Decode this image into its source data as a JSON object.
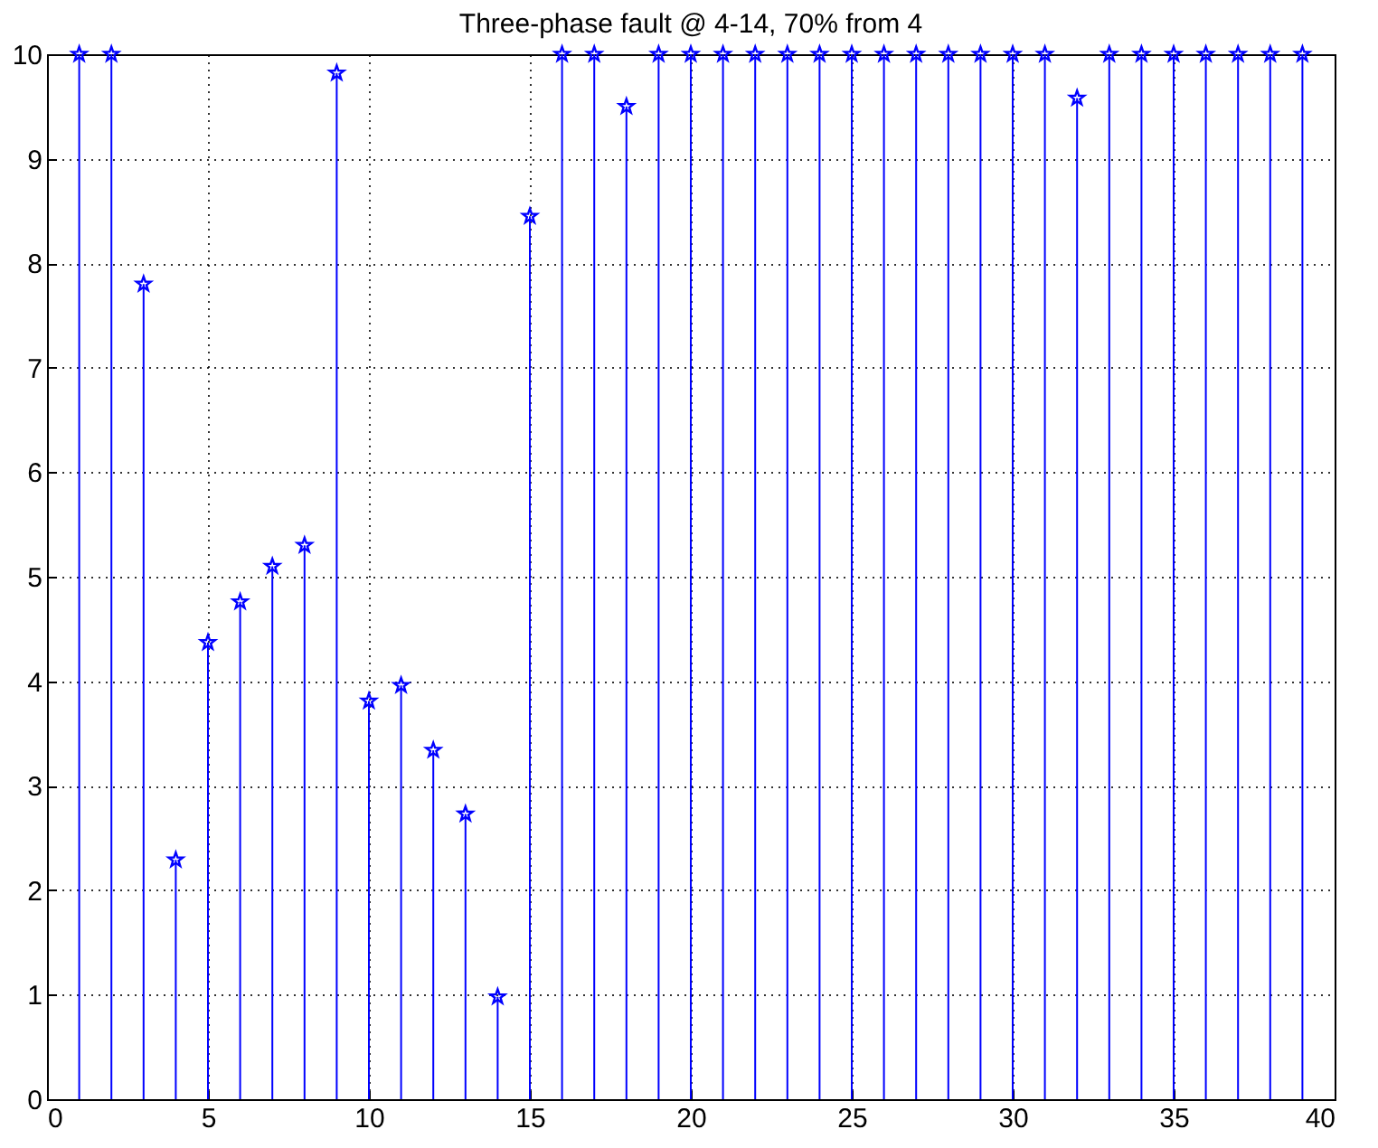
{
  "chart_data": {
    "type": "lollipop",
    "title": "Three-phase fault @ 4-14, 70% from 4",
    "x": [
      1,
      2,
      3,
      4,
      5,
      6,
      7,
      8,
      9,
      10,
      11,
      12,
      13,
      14,
      15,
      16,
      17,
      18,
      19,
      20,
      21,
      22,
      23,
      24,
      25,
      26,
      27,
      28,
      29,
      30,
      31,
      32,
      33,
      34,
      35,
      36,
      37,
      38,
      39
    ],
    "values": [
      10,
      10,
      7.8,
      2.29,
      4.37,
      4.76,
      5.1,
      5.3,
      9.82,
      3.81,
      3.96,
      3.34,
      2.73,
      0.98,
      8.45,
      10,
      10,
      9.5,
      10,
      10,
      10,
      10,
      10,
      10,
      10,
      10,
      10,
      10,
      10,
      10,
      10,
      9.58,
      10,
      10,
      10,
      10,
      10,
      10,
      10
    ],
    "color": "#0000ff",
    "marker": "star",
    "grid": true,
    "xlim": [
      0,
      40
    ],
    "xticks": [
      0,
      5,
      10,
      15,
      20,
      25,
      30,
      35,
      40
    ],
    "ylim": [
      0,
      10
    ],
    "yticks": [
      0,
      1,
      2,
      3,
      4,
      5,
      6,
      7,
      8,
      9,
      10
    ]
  }
}
